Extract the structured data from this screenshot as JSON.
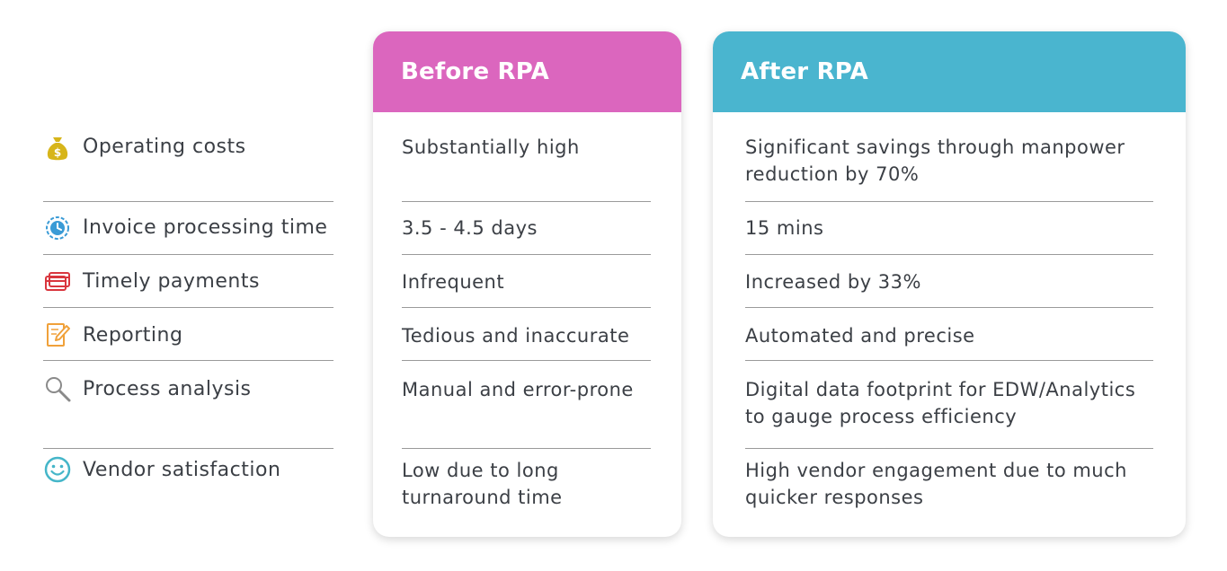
{
  "columns": {
    "before": "Before RPA",
    "after": "After RPA"
  },
  "rows": [
    {
      "icon": "money-bag-icon",
      "label": "Operating costs",
      "before": [
        "Substantially high"
      ],
      "after": [
        "Significant savings through manpower",
        "reduction by 70%"
      ]
    },
    {
      "icon": "clock-icon",
      "label": "Invoice processing time",
      "before": [
        "3.5 - 4.5 days"
      ],
      "after": [
        "15 mins"
      ]
    },
    {
      "icon": "credit-card-icon",
      "label": "Timely payments",
      "before": [
        "Infrequent"
      ],
      "after": [
        "Increased by 33%"
      ]
    },
    {
      "icon": "edit-document-icon",
      "label": "Reporting",
      "before": [
        "Tedious and inaccurate"
      ],
      "after": [
        "Automated and precise"
      ]
    },
    {
      "icon": "magnifier-icon",
      "label": "Process analysis",
      "before": [
        "Manual and error-prone"
      ],
      "after": [
        "Digital data footprint for EDW/Analytics",
        "to gauge process efficiency"
      ]
    },
    {
      "icon": "smiley-icon",
      "label": "Vendor satisfaction",
      "before": [
        "Low due to long",
        "turnaround time"
      ],
      "after": [
        "High vendor engagement due to much",
        "quicker responses"
      ]
    }
  ],
  "colors": {
    "before_header": "#db66be",
    "after_header": "#4ab5cf",
    "money": "#d7b51a",
    "clock": "#3a9bd6",
    "card": "#d9363e",
    "edit": "#f0a13a",
    "search": "#8a8a8a",
    "smile": "#45b6c9"
  }
}
